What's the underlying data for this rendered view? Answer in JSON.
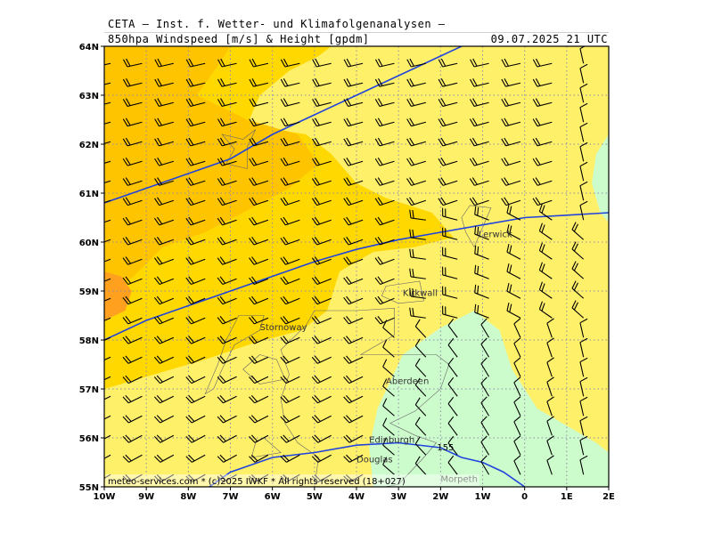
{
  "header": {
    "line1": "CETA — Inst. f. Wetter- und Klimafolgenanalysen —",
    "line2": "850hpa Windspeed [m/s] & Height [gpdm]",
    "valid": "09.07.2025 21 UTC"
  },
  "footer": {
    "credit": "meteo-services.com * (c)2025 IWKF * All rights reserved (18+027)"
  },
  "colors": {
    "speed_low": "#ccfccc",
    "speed_mid": "#fff06a",
    "speed_high": "#ffd800",
    "speed_higher": "#ffc400",
    "speed_max": "#ffa01e",
    "isohypse": "#2244dd",
    "grid": "#8c8ca8",
    "coast": "#666666"
  },
  "chart_data": {
    "type": "heatmap",
    "title": "850hpa Windspeed [m/s] & Height [gpdm]",
    "xlim": [
      -10,
      2
    ],
    "ylim": [
      55,
      64
    ],
    "grid": true,
    "x_ticks": [
      "10W",
      "9W",
      "8W",
      "7W",
      "6W",
      "5W",
      "4W",
      "3W",
      "2W",
      "1W",
      "0",
      "1E",
      "2E"
    ],
    "y_ticks": [
      "55N",
      "56N",
      "57N",
      "58N",
      "59N",
      "60N",
      "61N",
      "62N",
      "63N",
      "64N"
    ],
    "isohypse_labels": [
      "155"
    ],
    "cities": [
      {
        "name": "Lerwick",
        "lon": -1.1,
        "lat": 60.1
      },
      {
        "name": "Kirkwall",
        "lon": -2.9,
        "lat": 58.9
      },
      {
        "name": "Stornoway",
        "lon": -6.3,
        "lat": 58.2
      },
      {
        "name": "Aberdeen",
        "lon": -3.3,
        "lat": 57.1
      },
      {
        "name": "Edinburgh",
        "lon": -3.7,
        "lat": 55.9
      },
      {
        "name": "Douglas",
        "lon": -4.0,
        "lat": 55.5
      },
      {
        "name": "Morpeth",
        "lon": -2.0,
        "lat": 55.1
      }
    ],
    "isohypses": [
      {
        "label": "",
        "points": [
          [
            -10,
            60.8
          ],
          [
            -9,
            61.1
          ],
          [
            -8,
            61.4
          ],
          [
            -7,
            61.7
          ],
          [
            -6,
            62.2
          ],
          [
            -5,
            62.6
          ],
          [
            -4,
            63.0
          ],
          [
            -3,
            63.4
          ],
          [
            -2,
            63.8
          ],
          [
            -1.5,
            64.0
          ]
        ]
      },
      {
        "label": "",
        "points": [
          [
            -10,
            58.0
          ],
          [
            -9,
            58.4
          ],
          [
            -8,
            58.7
          ],
          [
            -7,
            59.0
          ],
          [
            -6,
            59.3
          ],
          [
            -5,
            59.6
          ],
          [
            -4,
            59.85
          ],
          [
            -3,
            60.05
          ],
          [
            -2,
            60.2
          ],
          [
            -1,
            60.35
          ],
          [
            0,
            60.5
          ],
          [
            1,
            60.55
          ],
          [
            2,
            60.6
          ]
        ]
      },
      {
        "label": "155",
        "points": [
          [
            -7.5,
            55.0
          ],
          [
            -7,
            55.3
          ],
          [
            -6,
            55.6
          ],
          [
            -5,
            55.7
          ],
          [
            -4,
            55.85
          ],
          [
            -3,
            55.9
          ],
          [
            -2,
            55.8
          ],
          [
            -1.5,
            55.6
          ],
          [
            -1,
            55.5
          ],
          [
            -0.5,
            55.3
          ],
          [
            0,
            55.0
          ]
        ]
      }
    ],
    "wind": {
      "lon_step": 0.75,
      "lat_step": 0.4,
      "note": "850 hPa barbs; direction in degrees (from), speed in knots"
    }
  }
}
